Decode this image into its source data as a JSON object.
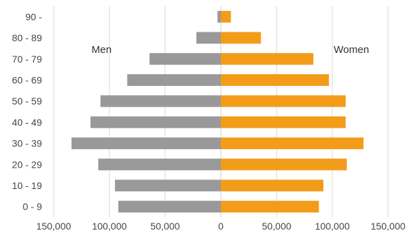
{
  "chart_data": {
    "type": "bar",
    "orientation": "horizontal",
    "layout": "population-pyramid",
    "categories": [
      "90 -",
      "80 - 89",
      "70 - 79",
      "60 - 69",
      "50 - 59",
      "40 - 49",
      "30 - 39",
      "20 - 29",
      "10 - 19",
      "0 - 9"
    ],
    "series": [
      {
        "name": "Men",
        "color": "#999999",
        "values": [
          3000,
          22000,
          64000,
          84000,
          108000,
          117000,
          134000,
          110000,
          95000,
          92000
        ]
      },
      {
        "name": "Women",
        "color": "#F39C1A",
        "values": [
          9000,
          36000,
          83000,
          97000,
          112000,
          112000,
          128000,
          113000,
          92000,
          88000
        ]
      }
    ],
    "xlim": [
      -150000,
      150000
    ],
    "xticks": [
      -150000,
      -100000,
      -50000,
      0,
      50000,
      100000,
      150000
    ],
    "xtick_labels": [
      "150,000",
      "100,000",
      "50,000",
      "0",
      "50,000",
      "100,000",
      "150,000"
    ],
    "grid": "vertical",
    "title": "",
    "xlabel": "",
    "ylabel": ""
  }
}
